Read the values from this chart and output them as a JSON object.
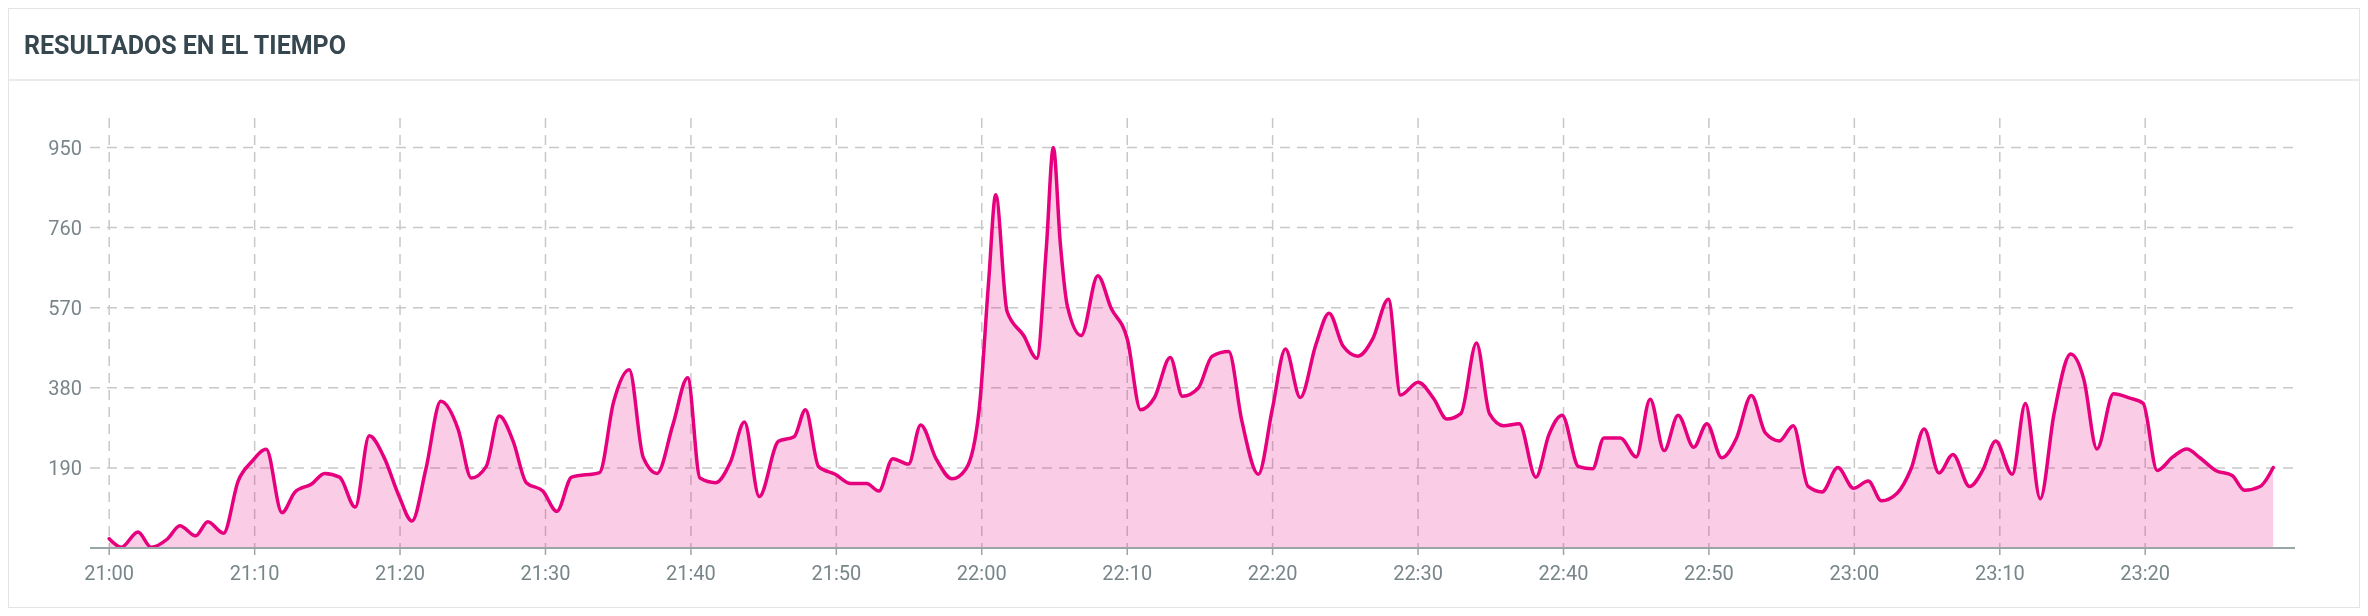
{
  "chart_data": {
    "type": "area",
    "title": "RESULTADOS EN EL TIEMPO",
    "x": [
      21.0,
      21.014,
      21.033,
      21.048,
      21.067,
      21.081,
      21.099,
      21.113,
      21.131,
      21.148,
      21.163,
      21.18,
      21.198,
      21.213,
      21.232,
      21.247,
      21.264,
      21.282,
      21.298,
      21.315,
      21.332,
      21.347,
      21.363,
      21.38,
      21.4,
      21.415,
      21.432,
      21.447,
      21.463,
      21.478,
      21.497,
      21.513,
      21.53,
      21.562,
      21.578,
      21.596,
      21.612,
      21.628,
      21.646,
      21.663,
      21.677,
      21.695,
      21.712,
      21.728,
      21.745,
      21.767,
      21.785,
      21.798,
      21.813,
      21.832,
      21.85,
      21.868,
      21.882,
      21.898,
      21.916,
      21.93,
      21.948,
      21.966,
      21.982,
      21.997,
      22.008,
      22.016,
      22.029,
      22.048,
      22.063,
      22.074,
      22.082,
      22.09,
      22.098,
      22.114,
      22.133,
      22.148,
      22.167,
      22.182,
      22.198,
      22.216,
      22.23,
      22.248,
      22.264,
      22.283,
      22.298,
      22.317,
      22.333,
      22.348,
      22.365,
      22.383,
      22.398,
      22.414,
      22.431,
      22.448,
      22.466,
      22.48,
      22.5,
      22.518,
      22.533,
      22.549,
      22.567,
      22.582,
      22.598,
      22.616,
      22.635,
      22.65,
      22.665,
      22.684,
      22.7,
      22.713,
      22.732,
      22.75,
      22.766,
      22.782,
      22.798,
      22.816,
      22.831,
      22.848,
      22.865,
      22.882,
      22.898,
      22.914,
      22.93,
      22.947,
      22.963,
      22.981,
      22.999,
      23.016,
      23.031,
      23.049,
      23.065,
      23.08,
      23.097,
      23.113,
      23.132,
      23.147,
      23.162,
      23.181,
      23.196,
      23.213,
      23.229,
      23.248,
      23.263,
      23.278,
      23.297,
      23.315,
      23.331,
      23.347,
      23.365,
      23.381,
      23.396,
      23.414,
      23.433,
      23.447,
      23.465,
      23.48
    ],
    "series": [
      {
        "color": "#e6007e",
        "values": [
          22,
          2,
          38,
          2,
          22,
          53,
          29,
          62,
          35,
          160,
          204,
          234,
          84,
          133,
          152,
          177,
          168,
          97,
          266,
          215,
          124,
          64,
          188,
          348,
          281,
          166,
          193,
          313,
          253,
          155,
          135,
          87,
          168,
          179,
          346,
          423,
          215,
          177,
          292,
          404,
          166,
          155,
          204,
          299,
          122,
          253,
          264,
          328,
          193,
          175,
          153,
          153,
          135,
          212,
          199,
          292,
          210,
          164,
          188,
          328,
          636,
          838,
          561,
          504,
          450,
          712,
          950,
          723,
          575,
          504,
          646,
          570,
          494,
          328,
          357,
          452,
          360,
          379,
          455,
          466,
          302,
          175,
          330,
          472,
          357,
          483,
          557,
          479,
          455,
          496,
          590,
          363,
          393,
          354,
          306,
          319,
          486,
          318,
          290,
          295,
          168,
          269,
          315,
          193,
          188,
          261,
          261,
          216,
          353,
          231,
          315,
          239,
          295,
          214,
          261,
          362,
          273,
          254,
          290,
          146,
          133,
          191,
          142,
          159,
          112,
          130,
          188,
          282,
          178,
          222,
          146,
          184,
          254,
          175,
          343,
          117,
          320,
          460,
          400,
          235,
          366,
          356,
          343,
          184,
          216,
          235,
          214,
          184,
          172,
          137,
          146,
          191
        ]
      }
    ],
    "xlim": [
      20.978,
      23.505
    ],
    "xticks": [
      {
        "value": 21,
        "label": "21:00"
      },
      {
        "value": 21.1667,
        "label": "21:10"
      },
      {
        "value": 21.3333,
        "label": "21:20"
      },
      {
        "value": 21.5,
        "label": "21:30"
      },
      {
        "value": 21.6667,
        "label": "21:40"
      },
      {
        "value": 21.8333,
        "label": "21:50"
      },
      {
        "value": 22,
        "label": "22:00"
      },
      {
        "value": 22.1667,
        "label": "22:10"
      },
      {
        "value": 22.3333,
        "label": "22:20"
      },
      {
        "value": 22.5,
        "label": "22:30"
      },
      {
        "value": 22.6667,
        "label": "22:40"
      },
      {
        "value": 22.8333,
        "label": "22:50"
      },
      {
        "value": 23,
        "label": "23:00"
      },
      {
        "value": 23.1667,
        "label": "23:10"
      },
      {
        "value": 23.3333,
        "label": "23:20"
      }
    ],
    "ylim": [
      0,
      1020
    ],
    "yticks": [
      190,
      380,
      570,
      760,
      950
    ],
    "grid": true
  }
}
